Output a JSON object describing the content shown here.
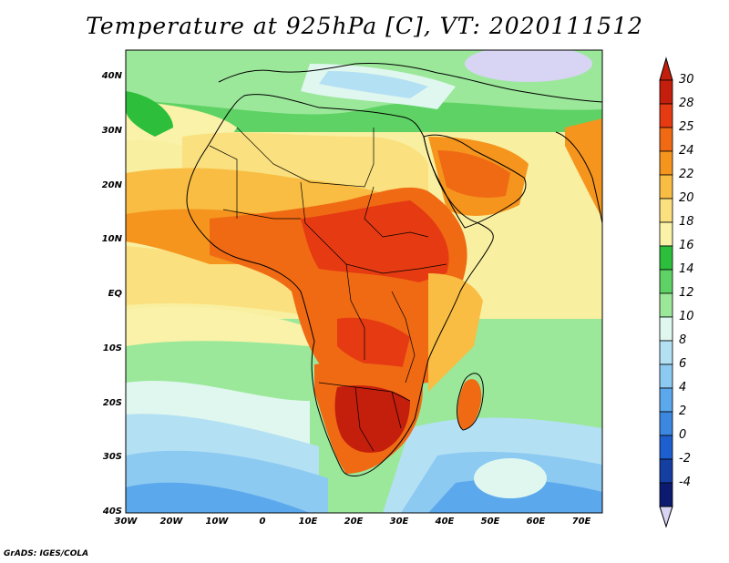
{
  "title": "Temperature at 925hPa [C], VT: 2020111512",
  "lat_labels": [
    "40N",
    "30N",
    "20N",
    "10N",
    "EQ",
    "10S",
    "20S",
    "30S",
    "40S"
  ],
  "lon_labels": [
    "30W",
    "20W",
    "10W",
    "0",
    "10E",
    "20E",
    "30E",
    "40E",
    "50E",
    "60E",
    "70E"
  ],
  "colorbar": {
    "labels": [
      "30",
      "28",
      "25",
      "24",
      "22",
      "20",
      "18",
      "16",
      "14",
      "12",
      "10",
      "8",
      "6",
      "4",
      "2",
      "0",
      "-2",
      "-4"
    ],
    "colors": [
      "#c41e0c",
      "#e63a12",
      "#f06a14",
      "#f5951e",
      "#f8bd42",
      "#fae07e",
      "#f9f2a8",
      "#2dbe3c",
      "#5ed264",
      "#9be89a",
      "#dff7ef",
      "#b4e0f4",
      "#8ccaf2",
      "#5ca8ec",
      "#3c88e0",
      "#1e5fcf",
      "#143ea0",
      "#0c1a70"
    ],
    "over_color": "#c41e0c",
    "under_color": "#d8d4f4"
  },
  "credit": "GrADS: IGES/COLA"
}
